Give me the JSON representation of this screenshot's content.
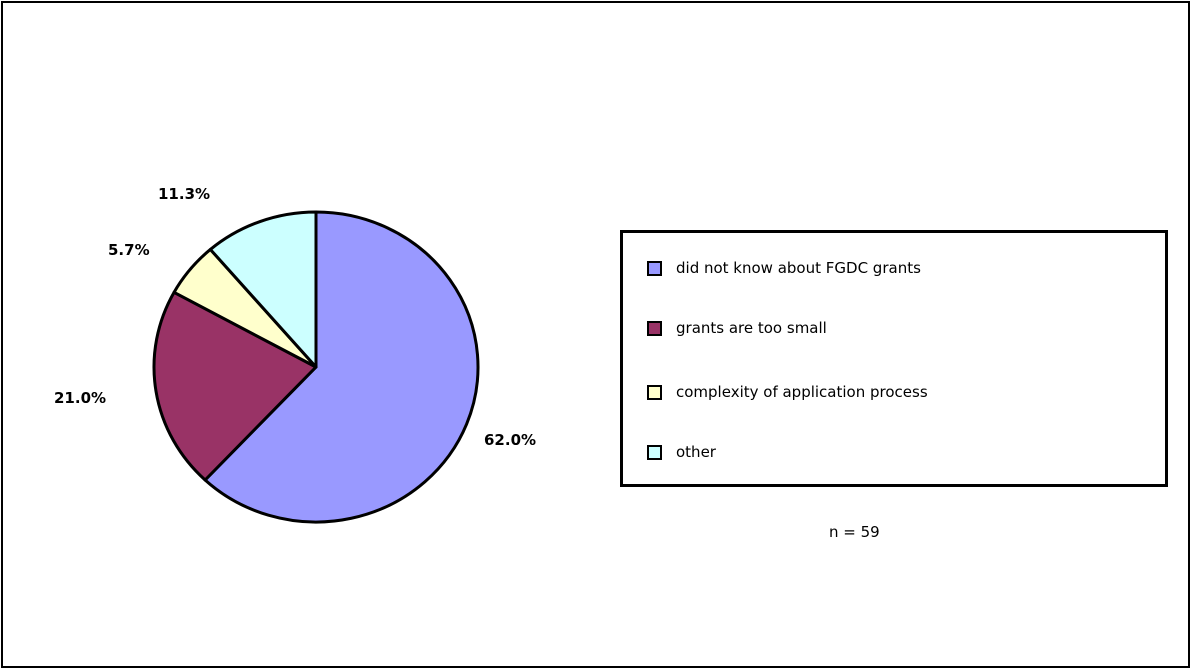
{
  "chart_data": {
    "type": "pie",
    "title": "",
    "categories": [
      "did not know about FGDC grants",
      "grants are too small",
      "complexity of application process",
      "other"
    ],
    "values": [
      62.0,
      21.0,
      5.7,
      11.3
    ],
    "value_labels": [
      "62.0%",
      "21.0%",
      "5.7%",
      "11.3%"
    ],
    "colors": [
      "#9999ff",
      "#993366",
      "#ffffcc",
      "#ccffff"
    ],
    "start_angle_deg": 0,
    "direction": "clockwise",
    "legend_position": "right",
    "note": "n = 59"
  }
}
